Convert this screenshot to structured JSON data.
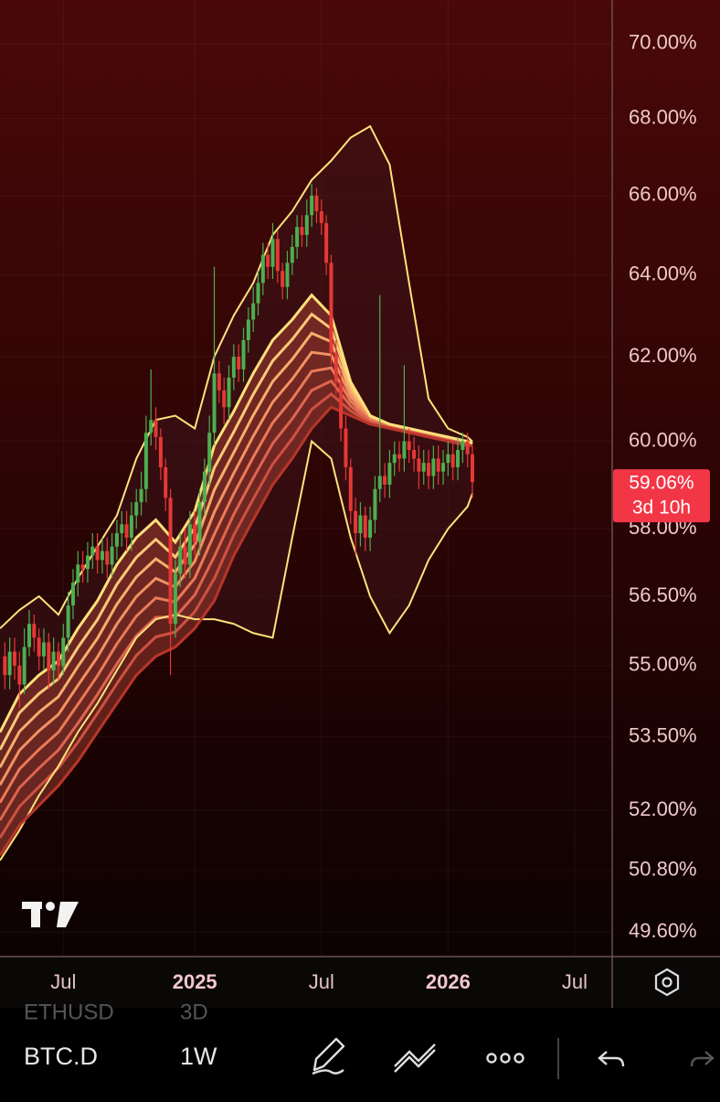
{
  "chart_data": {
    "type": "candlestick",
    "log_scale": true,
    "grid": true,
    "up_color": "#4caf50",
    "down_color": "#e53935",
    "x": [
      1,
      2,
      3,
      4,
      5,
      6,
      7,
      8,
      9,
      10,
      11,
      12,
      13,
      14,
      15,
      16,
      17,
      18,
      19,
      20,
      21,
      22,
      23,
      24,
      25,
      26,
      27,
      28,
      29,
      30,
      31,
      32,
      33,
      34,
      35,
      36,
      37,
      38,
      39,
      40,
      41,
      42,
      43,
      44,
      45,
      46,
      47,
      48,
      49,
      50,
      51,
      52,
      53,
      54,
      55,
      56,
      57,
      58,
      59,
      60,
      61,
      62,
      63,
      64,
      65,
      66,
      67,
      68,
      69,
      70,
      71,
      72,
      73,
      74,
      75,
      76,
      77,
      78,
      79,
      80,
      81,
      82,
      83,
      84,
      85,
      86,
      87,
      88,
      89,
      90,
      91,
      92,
      93,
      94,
      95,
      96,
      97
    ],
    "open": [
      55.2,
      54.8,
      55.3,
      55.0,
      54.6,
      55.4,
      55.9,
      55.6,
      55.2,
      55.5,
      54.9,
      55.3,
      55.0,
      55.6,
      56.3,
      56.8,
      57.2,
      57.1,
      57.4,
      57.6,
      57.3,
      57.5,
      57.2,
      57.6,
      57.9,
      58.1,
      57.8,
      58.3,
      58.6,
      58.9,
      60.2,
      60.5,
      60.1,
      59.4,
      58.7,
      55.9,
      57.0,
      57.6,
      57.2,
      58.1,
      57.7,
      58.6,
      59.3,
      60.2,
      61.6,
      61.2,
      60.8,
      61.5,
      62.0,
      61.7,
      62.4,
      62.9,
      63.3,
      63.8,
      64.5,
      64.2,
      64.9,
      64.1,
      63.7,
      64.3,
      64.7,
      65.2,
      65.0,
      65.5,
      66.0,
      65.6,
      65.3,
      64.3,
      62.1,
      61.4,
      60.3,
      59.4,
      58.4,
      57.9,
      58.3,
      57.8,
      58.2,
      58.9,
      59.2,
      59.0,
      59.5,
      59.7,
      59.6,
      60.0,
      59.8,
      59.6,
      59.3,
      59.5,
      59.2,
      59.6,
      59.3,
      59.5,
      59.7,
      59.4,
      59.8,
      60.0,
      59.7
    ],
    "high": [
      55.5,
      55.6,
      55.6,
      55.3,
      55.8,
      56.2,
      56.1,
      55.8,
      55.8,
      55.7,
      55.6,
      55.5,
      55.9,
      56.6,
      57.1,
      57.5,
      57.5,
      57.7,
      57.9,
      57.9,
      57.8,
      57.8,
      57.9,
      58.2,
      58.4,
      58.4,
      58.6,
      58.9,
      59.3,
      60.6,
      61.7,
      60.8,
      60.3,
      59.6,
      58.9,
      57.3,
      57.9,
      58.0,
      58.4,
      58.4,
      58.9,
      59.6,
      60.6,
      64.2,
      61.9,
      61.5,
      61.8,
      62.3,
      62.3,
      62.7,
      63.2,
      63.7,
      64.1,
      64.8,
      64.8,
      65.3,
      65.1,
      64.3,
      64.6,
      65.0,
      65.5,
      65.5,
      65.9,
      66.3,
      66.2,
      65.9,
      65.5,
      64.5,
      62.4,
      61.7,
      60.6,
      59.6,
      58.7,
      58.6,
      58.5,
      58.5,
      59.2,
      63.5,
      59.5,
      59.8,
      60.0,
      60.0,
      61.8,
      60.3,
      60.1,
      59.9,
      59.8,
      59.8,
      59.9,
      59.9,
      59.8,
      60.0,
      60.0,
      60.1,
      60.2,
      60.2,
      59.9
    ],
    "low": [
      54.5,
      54.5,
      54.7,
      54.1,
      54.4,
      55.2,
      55.3,
      54.9,
      54.9,
      54.5,
      54.6,
      54.7,
      54.8,
      55.3,
      56.0,
      56.5,
      56.8,
      56.8,
      57.1,
      57.0,
      57.0,
      56.9,
      56.9,
      57.3,
      57.6,
      57.5,
      57.5,
      58.0,
      58.3,
      58.6,
      59.9,
      59.8,
      59.1,
      58.4,
      54.8,
      55.6,
      56.7,
      56.9,
      56.9,
      57.4,
      57.4,
      58.3,
      59.0,
      59.9,
      60.9,
      60.4,
      60.5,
      61.2,
      61.4,
      61.4,
      62.1,
      62.6,
      63.0,
      63.5,
      63.9,
      63.9,
      63.8,
      63.4,
      63.4,
      64.0,
      64.4,
      64.7,
      64.7,
      65.2,
      65.3,
      65.0,
      64.0,
      61.8,
      61.1,
      60.0,
      59.1,
      58.1,
      57.4,
      57.6,
      57.5,
      57.5,
      57.9,
      58.6,
      58.7,
      58.7,
      59.2,
      59.3,
      59.3,
      59.5,
      59.3,
      58.9,
      59.0,
      58.9,
      58.9,
      59.0,
      59.0,
      59.2,
      59.1,
      59.1,
      59.5,
      59.4,
      58.7
    ],
    "close": [
      54.8,
      55.3,
      55.0,
      54.6,
      55.4,
      55.9,
      55.6,
      55.2,
      55.5,
      54.9,
      55.3,
      55.0,
      55.6,
      56.3,
      56.8,
      57.2,
      57.1,
      57.4,
      57.6,
      57.3,
      57.5,
      57.2,
      57.6,
      57.9,
      58.1,
      57.8,
      58.3,
      58.6,
      58.9,
      60.2,
      60.5,
      60.1,
      59.4,
      58.7,
      55.9,
      57.0,
      57.6,
      57.2,
      58.1,
      57.7,
      58.6,
      59.3,
      60.2,
      61.6,
      61.2,
      60.8,
      61.5,
      62.0,
      61.7,
      62.4,
      62.9,
      63.3,
      63.8,
      64.5,
      64.2,
      64.9,
      64.1,
      63.7,
      64.3,
      64.7,
      65.2,
      65.0,
      65.5,
      66.0,
      65.6,
      65.3,
      64.3,
      62.1,
      61.4,
      60.3,
      59.4,
      58.4,
      57.9,
      58.3,
      57.8,
      58.2,
      58.9,
      59.2,
      59.0,
      59.5,
      59.7,
      59.6,
      60.0,
      59.8,
      59.6,
      59.3,
      59.5,
      59.2,
      59.6,
      59.3,
      59.5,
      59.7,
      59.4,
      59.8,
      60.0,
      59.7,
      59.06
    ],
    "overlays": [
      {
        "color": "#ffe27a",
        "x": [
          0,
          4,
          8,
          12,
          16,
          20,
          24,
          28,
          32,
          36,
          40,
          44,
          48,
          52,
          56,
          60,
          64,
          68,
          72,
          76,
          80,
          84,
          88,
          92,
          96,
          97
        ],
        "values": [
          55.8,
          56.2,
          56.5,
          56.1,
          56.9,
          57.6,
          58.3,
          59.6,
          60.5,
          60.6,
          60.3,
          62.0,
          63.0,
          63.8,
          65.0,
          65.6,
          66.4,
          66.9,
          67.5,
          67.8,
          66.8,
          63.8,
          61.0,
          60.3,
          60.1,
          60.0
        ]
      },
      {
        "color": "#ffe27a",
        "x": [
          0,
          4,
          8,
          12,
          16,
          20,
          24,
          28,
          32,
          36,
          40,
          44,
          48,
          52,
          56,
          60,
          64,
          68,
          72,
          76,
          80,
          84,
          88,
          92,
          96,
          97
        ],
        "values": [
          51.0,
          51.6,
          52.3,
          52.9,
          53.6,
          54.2,
          54.9,
          55.6,
          56.0,
          56.1,
          56.0,
          56.0,
          55.9,
          55.7,
          55.6,
          57.8,
          60.0,
          59.6,
          57.8,
          56.5,
          55.7,
          56.3,
          57.3,
          58.0,
          58.5,
          58.8
        ]
      },
      {
        "color": "#ffe07a",
        "x": [
          0,
          4,
          8,
          12,
          16,
          20,
          24,
          28,
          32,
          36,
          40,
          44,
          48,
          52,
          56,
          60,
          64,
          68,
          72,
          76,
          80,
          84,
          88,
          92,
          96,
          97
        ],
        "values": [
          53.6,
          54.4,
          54.8,
          55.1,
          55.8,
          56.4,
          57.2,
          57.8,
          58.2,
          57.7,
          58.4,
          59.9,
          60.7,
          61.6,
          62.4,
          62.9,
          63.5,
          63.0,
          61.4,
          60.6,
          60.4,
          60.3,
          60.2,
          60.1,
          60.0,
          59.95
        ]
      },
      {
        "color": "#b8352a",
        "x": [
          0,
          4,
          8,
          12,
          16,
          20,
          24,
          28,
          32,
          36,
          40,
          44,
          48,
          52,
          56,
          60,
          64,
          68,
          72,
          76,
          80,
          84,
          88,
          92,
          96,
          97
        ],
        "values": [
          51.1,
          51.7,
          52.1,
          52.5,
          53.0,
          53.6,
          54.2,
          54.8,
          55.2,
          55.4,
          55.8,
          56.4,
          57.4,
          58.2,
          59.0,
          59.6,
          60.3,
          60.8,
          60.6,
          60.4,
          60.3,
          60.2,
          60.1,
          60.0,
          59.9,
          59.9
        ]
      }
    ],
    "xlim": [
      0,
      125.7
    ],
    "xticks": [
      {
        "value": 13,
        "label": "Jul"
      },
      {
        "value": 40,
        "label": "2025"
      },
      {
        "value": 66,
        "label": "Jul"
      },
      {
        "value": 92,
        "label": "2026"
      },
      {
        "value": 118,
        "label": "Jul"
      }
    ],
    "ylim": [
      49.15,
      71.2
    ],
    "yticks": [
      {
        "value": 70,
        "label": "70.00%"
      },
      {
        "value": 68,
        "label": "68.00%"
      },
      {
        "value": 66,
        "label": "66.00%"
      },
      {
        "value": 64,
        "label": "64.00%"
      },
      {
        "value": 62,
        "label": "62.00%"
      },
      {
        "value": 60,
        "label": "60.00%"
      },
      {
        "value": 58,
        "label": "58.00%"
      },
      {
        "value": 56.5,
        "label": "56.50%"
      },
      {
        "value": 55,
        "label": "55.00%"
      },
      {
        "value": 53.5,
        "label": "53.50%"
      },
      {
        "value": 52,
        "label": "52.00%"
      },
      {
        "value": 50.8,
        "label": "50.80%"
      },
      {
        "value": 49.6,
        "label": "49.60%"
      }
    ],
    "last_price": {
      "value": 59.06,
      "label": "59.06%",
      "countdown": "3d 10h",
      "color": "#f23645"
    }
  },
  "toolbar": {
    "symbols": [
      {
        "symbol": "ETHUSD",
        "interval": "3D"
      },
      {
        "symbol": "BTC.D",
        "interval": "1W"
      }
    ]
  }
}
